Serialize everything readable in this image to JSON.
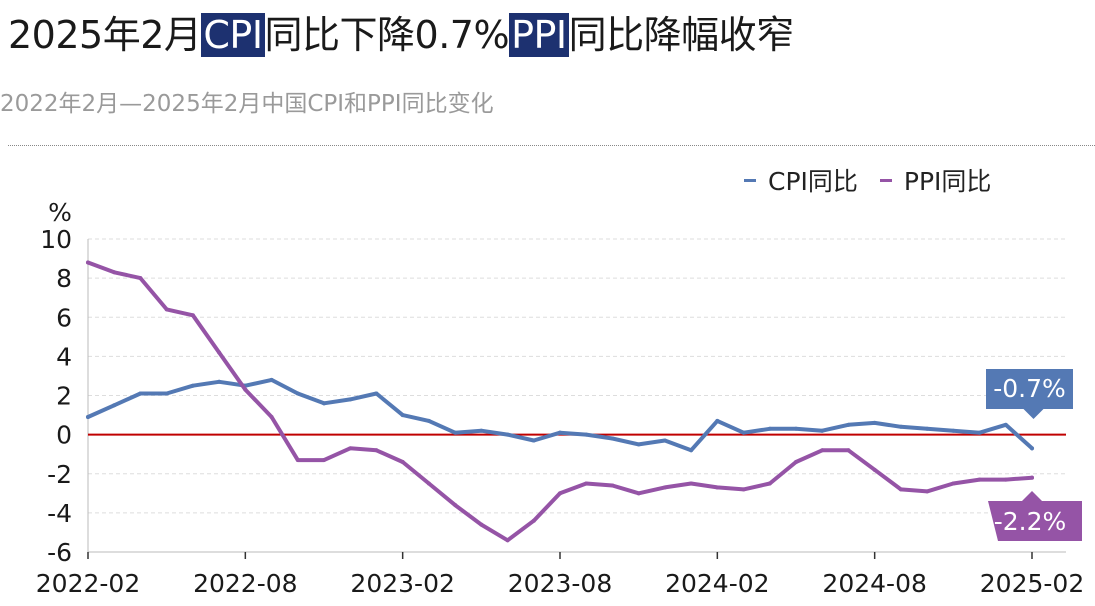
{
  "title": {
    "part1": "2025年2月",
    "hl1": "CPI",
    "part2": "同比下降0.7%",
    "hl2": "PPI",
    "part3": "同比降幅收窄"
  },
  "subtitle": "2022年2月—2025年2月中国CPI和PPI同比变化",
  "colors": {
    "cpi": "#5479b4",
    "ppi": "#9554a6",
    "zero_line": "#c00000",
    "highlight": "#1d3170"
  },
  "chart_data": {
    "type": "line",
    "unit_label": "%",
    "ylim": [
      -6,
      10
    ],
    "yticks": [
      -6,
      -4,
      -2,
      0,
      2,
      4,
      6,
      8,
      10
    ],
    "xtick_labels": [
      "2022-02",
      "2022-08",
      "2023-02",
      "2023-08",
      "2024-02",
      "2024-08",
      "2025-02"
    ],
    "grid": true,
    "legend_position": "top-right",
    "x": [
      "2022-02",
      "2022-03",
      "2022-04",
      "2022-05",
      "2022-06",
      "2022-07",
      "2022-08",
      "2022-09",
      "2022-10",
      "2022-11",
      "2022-12",
      "2023-01",
      "2023-02",
      "2023-03",
      "2023-04",
      "2023-05",
      "2023-06",
      "2023-07",
      "2023-08",
      "2023-09",
      "2023-10",
      "2023-11",
      "2023-12",
      "2024-01",
      "2024-02",
      "2024-03",
      "2024-04",
      "2024-05",
      "2024-06",
      "2024-07",
      "2024-08",
      "2024-09",
      "2024-10",
      "2024-11",
      "2024-12",
      "2025-01",
      "2025-02"
    ],
    "series": [
      {
        "name": "CPI同比",
        "color_key": "cpi",
        "end_label": "-0.7%",
        "values": [
          0.9,
          1.5,
          2.1,
          2.1,
          2.5,
          2.7,
          2.5,
          2.8,
          2.1,
          1.6,
          1.8,
          2.1,
          1.0,
          0.7,
          0.1,
          0.2,
          0.0,
          -0.3,
          0.1,
          0.0,
          -0.2,
          -0.5,
          -0.3,
          -0.8,
          0.7,
          0.1,
          0.3,
          0.3,
          0.2,
          0.5,
          0.6,
          0.4,
          0.3,
          0.2,
          0.1,
          0.5,
          -0.7
        ]
      },
      {
        "name": "PPI同比",
        "color_key": "ppi",
        "end_label": "-2.2%",
        "values": [
          8.8,
          8.3,
          8.0,
          6.4,
          6.1,
          4.2,
          2.3,
          0.9,
          -1.3,
          -1.3,
          -0.7,
          -0.8,
          -1.4,
          -2.5,
          -3.6,
          -4.6,
          -5.4,
          -4.4,
          -3.0,
          -2.5,
          -2.6,
          -3.0,
          -2.7,
          -2.5,
          -2.7,
          -2.8,
          -2.5,
          -1.4,
          -0.8,
          -0.8,
          -1.8,
          -2.8,
          -2.9,
          -2.5,
          -2.3,
          -2.3,
          -2.2
        ]
      }
    ]
  }
}
